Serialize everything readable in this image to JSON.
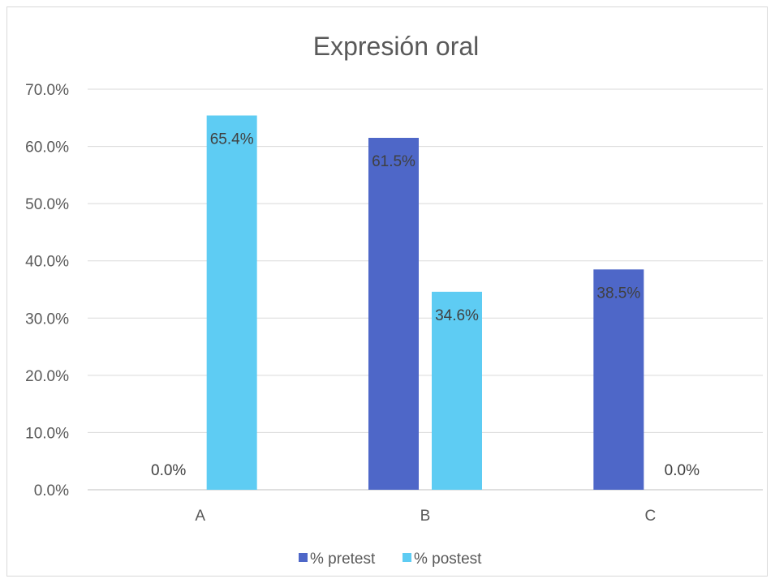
{
  "chart_data": {
    "type": "bar",
    "title": "Expresión oral",
    "categories": [
      "A",
      "B",
      "C"
    ],
    "series": [
      {
        "name": "% pretest",
        "values": [
          0.0,
          61.5,
          38.5
        ],
        "labels": [
          "0.0%",
          "61.5%",
          "38.5%"
        ],
        "color": "#4E67C8"
      },
      {
        "name": "% postest",
        "values": [
          65.4,
          34.6,
          0.0
        ],
        "labels": [
          "65.4%",
          "34.6%",
          "0.0%"
        ],
        "color": "#5ECCF3"
      }
    ],
    "ylim": [
      0,
      70
    ],
    "y_ticks": [
      0,
      10,
      20,
      30,
      40,
      50,
      60,
      70
    ],
    "y_tick_labels": [
      "0.0%",
      "10.0%",
      "20.0%",
      "30.0%",
      "40.0%",
      "50.0%",
      "60.0%",
      "70.0%"
    ],
    "grid": true,
    "legend": "bottom"
  }
}
